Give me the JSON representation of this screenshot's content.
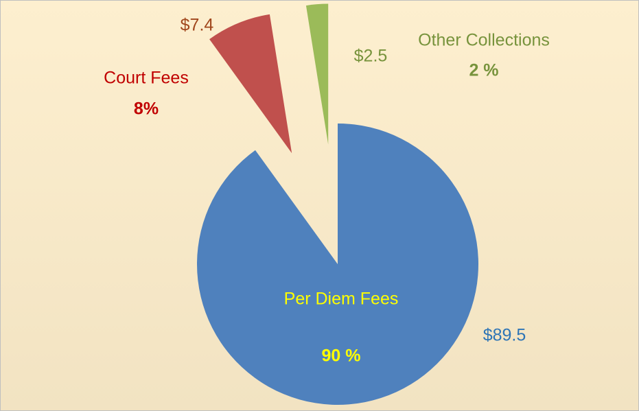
{
  "chart_data": {
    "type": "pie",
    "categories": [
      "Per Diem Fees",
      "Court Fees",
      "Other Collections"
    ],
    "values": [
      89.5,
      7.4,
      2.5
    ],
    "value_labels": [
      "$89.5",
      "$7.4",
      "$2.5"
    ],
    "percentages": [
      90,
      8,
      2
    ],
    "percent_labels": [
      "90 %",
      "8%",
      "2 %"
    ],
    "colors": [
      "#4f81bd",
      "#c0504d",
      "#9bbb59"
    ],
    "exploded": [
      false,
      true,
      true
    ]
  }
}
